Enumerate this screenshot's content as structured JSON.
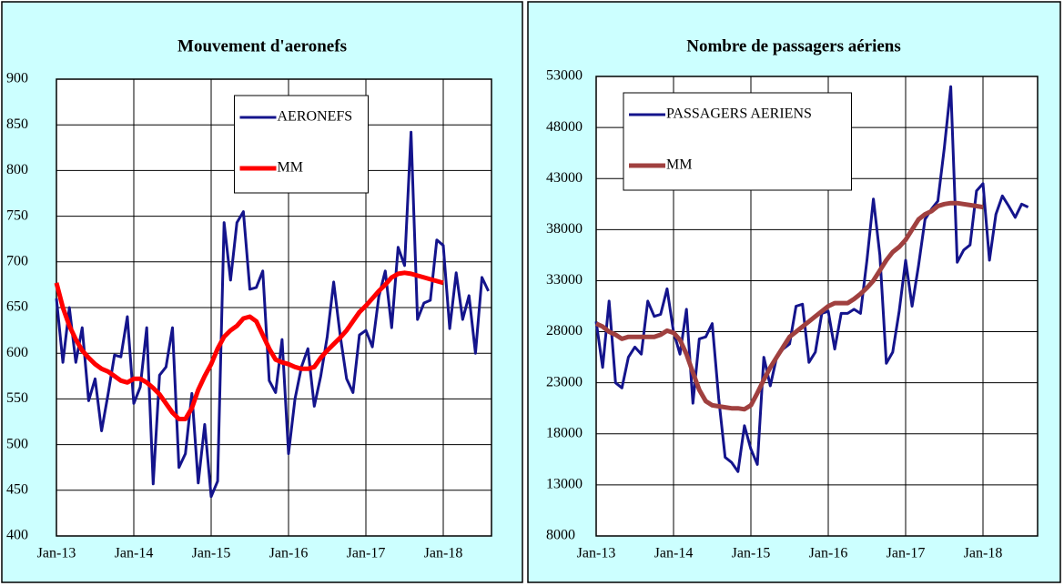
{
  "chart_data": [
    {
      "type": "line",
      "title": "Mouvement d'aeronefs",
      "categories": [
        "Jan-13",
        null,
        null,
        null,
        null,
        null,
        null,
        null,
        null,
        null,
        null,
        null,
        "Jan-14",
        null,
        null,
        null,
        null,
        null,
        null,
        null,
        null,
        null,
        null,
        null,
        "Jan-15",
        null,
        null,
        null,
        null,
        null,
        null,
        null,
        null,
        null,
        null,
        null,
        "Jan-16",
        null,
        null,
        null,
        null,
        null,
        null,
        null,
        null,
        null,
        null,
        null,
        "Jan-17",
        null,
        null,
        null,
        null,
        null,
        null,
        null,
        null,
        null,
        null,
        null,
        "Jan-18",
        null,
        null,
        null,
        null,
        null,
        null,
        null
      ],
      "series": [
        {
          "name": "AERONEFS",
          "color": "#14148c",
          "values": [
            660,
            590,
            650,
            590,
            628,
            548,
            572,
            515,
            555,
            598,
            596,
            640,
            545,
            563,
            628,
            457,
            576,
            585,
            628,
            475,
            490,
            556,
            458,
            522,
            443,
            460,
            743,
            680,
            743,
            755,
            670,
            672,
            690,
            570,
            557,
            615,
            490,
            550,
            585,
            605,
            542,
            575,
            618,
            678,
            620,
            572,
            557,
            620,
            625,
            607,
            662,
            690,
            628,
            716,
            696,
            842,
            637,
            655,
            658,
            724,
            718,
            627,
            688,
            637,
            663,
            600,
            683,
            668
          ]
        },
        {
          "name": "MM",
          "color": "#ff0000",
          "values": [
            677,
            650,
            630,
            615,
            603,
            595,
            588,
            583,
            580,
            575,
            570,
            568,
            572,
            572,
            568,
            562,
            555,
            545,
            535,
            528,
            528,
            540,
            560,
            575,
            588,
            605,
            618,
            625,
            630,
            638,
            640,
            635,
            620,
            605,
            593,
            590,
            588,
            585,
            583,
            583,
            585,
            595,
            603,
            610,
            617,
            625,
            635,
            645,
            652,
            660,
            668,
            675,
            683,
            687,
            688,
            687,
            685,
            683,
            681,
            679,
            677,
            null,
            null,
            null,
            null,
            null,
            null,
            null
          ]
        }
      ],
      "ylim": [
        400,
        900
      ],
      "yticks": [
        400,
        450,
        500,
        550,
        600,
        650,
        700,
        750,
        800,
        850,
        900
      ],
      "grid": true,
      "legend": "top-center"
    },
    {
      "type": "line",
      "title": "Nombre de passagers  aériens",
      "categories": [
        "Jan-13",
        null,
        null,
        null,
        null,
        null,
        null,
        null,
        null,
        null,
        null,
        null,
        "Jan-14",
        null,
        null,
        null,
        null,
        null,
        null,
        null,
        null,
        null,
        null,
        null,
        "Jan-15",
        null,
        null,
        null,
        null,
        null,
        null,
        null,
        null,
        null,
        null,
        null,
        "Jan-16",
        null,
        null,
        null,
        null,
        null,
        null,
        null,
        null,
        null,
        null,
        null,
        "Jan-17",
        null,
        null,
        null,
        null,
        null,
        null,
        null,
        null,
        null,
        null,
        null,
        "Jan-18",
        null,
        null,
        null,
        null,
        null,
        null,
        null
      ],
      "series": [
        {
          "name": "PASSAGERS AERIENS",
          "color": "#14148c",
          "values": [
            29000,
            24500,
            31000,
            23000,
            22500,
            25500,
            26500,
            25800,
            31000,
            29500,
            29700,
            32200,
            28000,
            25800,
            30200,
            21000,
            27300,
            27500,
            28800,
            21500,
            15700,
            15200,
            14300,
            18800,
            16500,
            15000,
            25500,
            22700,
            25500,
            26300,
            26800,
            30500,
            30700,
            25000,
            26000,
            29800,
            30000,
            26300,
            29800,
            29800,
            30200,
            29800,
            35000,
            41000,
            35500,
            24900,
            26000,
            30000,
            35000,
            30500,
            34500,
            39000,
            40000,
            40800,
            46000,
            52000,
            34800,
            36000,
            36500,
            41800,
            42500,
            35000,
            39500,
            41300,
            40300,
            39200,
            40500,
            40200
          ]
        },
        {
          "name": "MM",
          "color": "#a0403f",
          "values": [
            28800,
            28500,
            28000,
            27700,
            27300,
            27500,
            27500,
            27500,
            27500,
            27500,
            27700,
            28100,
            27900,
            27200,
            25800,
            24000,
            22300,
            21200,
            20800,
            20700,
            20600,
            20500,
            20500,
            20400,
            20800,
            22000,
            23300,
            24500,
            25500,
            26500,
            27500,
            28000,
            28500,
            29000,
            29500,
            30000,
            30500,
            30800,
            30800,
            30800,
            31200,
            31700,
            32300,
            33000,
            34000,
            35000,
            35800,
            36300,
            37000,
            38000,
            39000,
            39500,
            39800,
            40300,
            40500,
            40600,
            40600,
            40500,
            40400,
            40300,
            40200,
            null,
            null,
            null,
            null,
            null,
            null,
            null
          ]
        }
      ],
      "ylim": [
        8000,
        53000
      ],
      "yticks": [
        8000,
        13000,
        18000,
        23000,
        28000,
        33000,
        38000,
        43000,
        48000,
        53000
      ],
      "grid": true,
      "legend": "top-left"
    }
  ]
}
